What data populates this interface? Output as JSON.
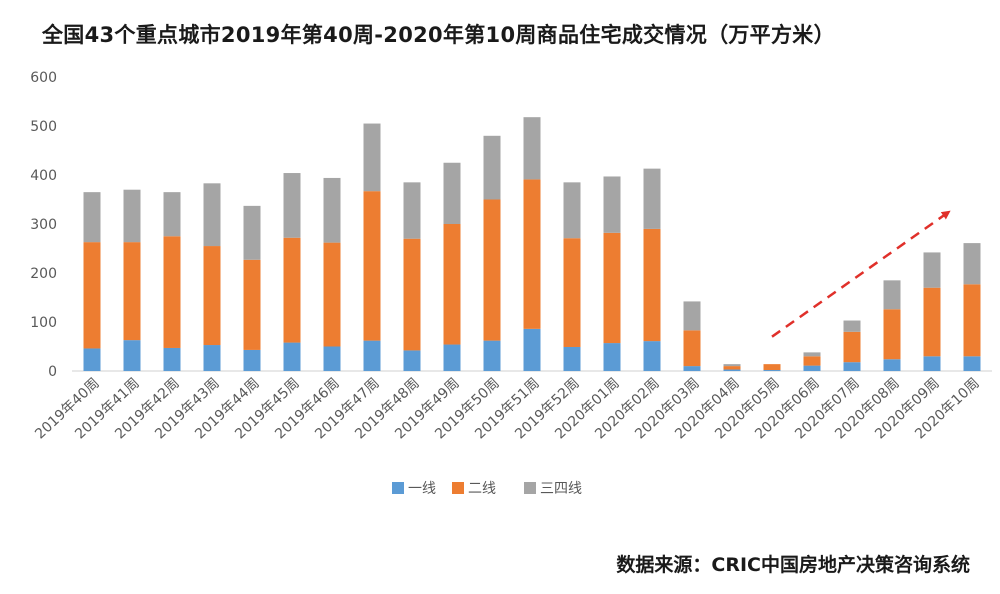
{
  "chart_data": {
    "type": "bar",
    "stacked": true,
    "title": "全国43个重点城市2019年第40周-2020年第10周商品住宅成交情况（万平方米）",
    "xlabel": "",
    "ylabel": "",
    "ylim": [
      0,
      600
    ],
    "yticks": [
      0,
      100,
      200,
      300,
      400,
      500,
      600
    ],
    "grid": false,
    "legend_position": "bottom",
    "categories": [
      "2019年40周",
      "2019年41周",
      "2019年42周",
      "2019年43周",
      "2019年44周",
      "2019年45周",
      "2019年46周",
      "2019年47周",
      "2019年48周",
      "2019年49周",
      "2019年50周",
      "2019年51周",
      "2019年52周",
      "2020年01周",
      "2020年02周",
      "2020年03周",
      "2020年04周",
      "2020年05周",
      "2020年06周",
      "2020年07周",
      "2020年08周",
      "2020年09周",
      "2020年10周"
    ],
    "series": [
      {
        "name": "一线",
        "color": "#5b9bd5",
        "values": [
          46,
          63,
          47,
          53,
          43,
          58,
          50,
          62,
          42,
          54,
          62,
          86,
          49,
          57,
          61,
          10,
          3,
          2,
          11,
          18,
          24,
          30,
          30
        ]
      },
      {
        "name": "二线",
        "color": "#ed7d31",
        "values": [
          217,
          200,
          228,
          202,
          184,
          214,
          212,
          305,
          228,
          246,
          288,
          305,
          222,
          225,
          229,
          73,
          7,
          12,
          19,
          62,
          102,
          140,
          147
        ]
      },
      {
        "name": "三四线",
        "color": "#a5a5a5",
        "values": [
          102,
          107,
          90,
          128,
          110,
          132,
          132,
          138,
          115,
          125,
          130,
          127,
          114,
          115,
          123,
          59,
          4,
          0,
          8,
          23,
          59,
          72,
          84
        ]
      }
    ],
    "annotations": [
      {
        "type": "dashed-arrow",
        "color": "#e0302a",
        "note": "upward trend 2020年05周 to 2020年10周"
      }
    ],
    "source": "数据来源：CRIC中国房地产决策咨询系统"
  }
}
